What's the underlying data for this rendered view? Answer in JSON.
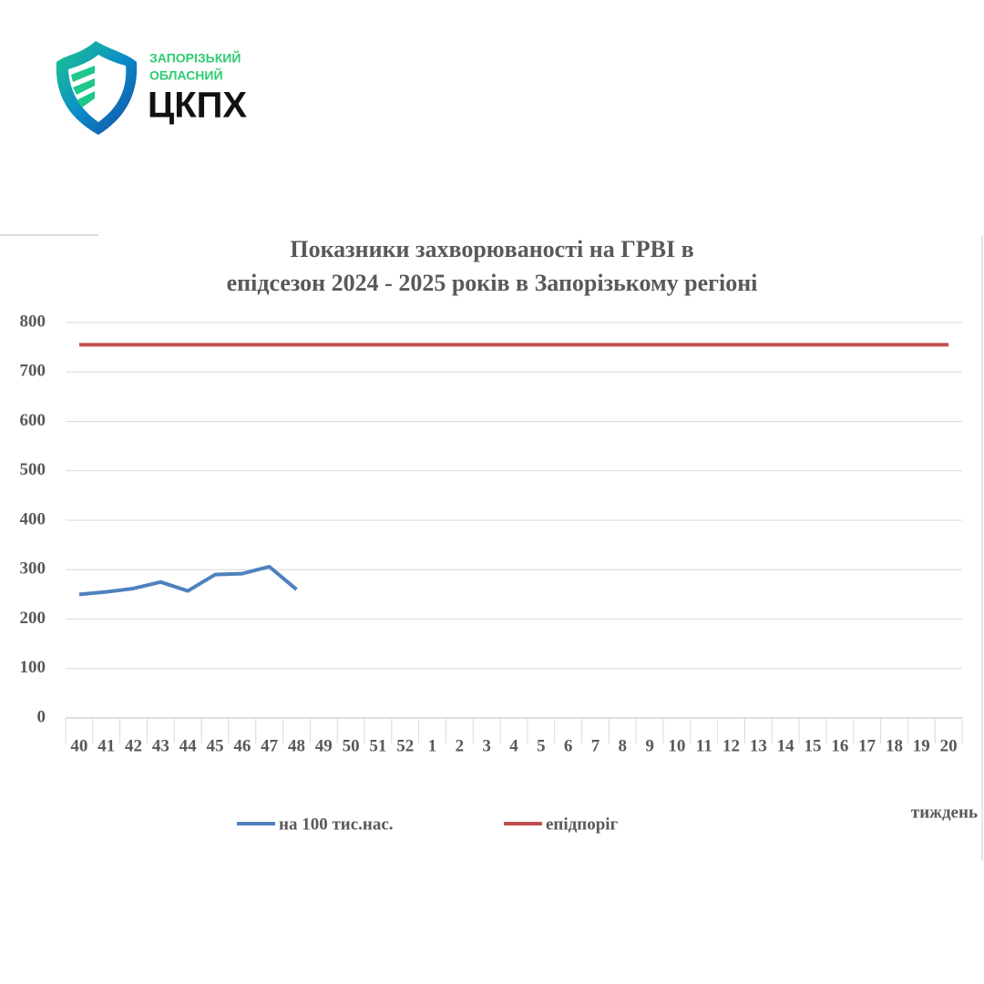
{
  "logo": {
    "line1": "ЗАПОРІЗЬКИЙ",
    "line2": "ОБЛАСНИЙ",
    "name": "ЦКПХ"
  },
  "chart_data": {
    "type": "line",
    "title": [
      "Показники захворюваності на ГРВІ в",
      "епідсезон 2024 - 2025 років в Запорізькому регіоні"
    ],
    "x_label": "тиждень",
    "categories": [
      "40",
      "41",
      "42",
      "43",
      "44",
      "45",
      "46",
      "47",
      "48",
      "49",
      "50",
      "51",
      "52",
      "1",
      "2",
      "3",
      "4",
      "5",
      "6",
      "7",
      "8",
      "9",
      "10",
      "11",
      "12",
      "13",
      "14",
      "15",
      "16",
      "17",
      "18",
      "19",
      "20"
    ],
    "series": [
      {
        "name": "на 100 тис.нас.",
        "color": "#4f81bd",
        "values": [
          250,
          255,
          262,
          275,
          257,
          290,
          292,
          306,
          260,
          null,
          null,
          null,
          null,
          null,
          null,
          null,
          null,
          null,
          null,
          null,
          null,
          null,
          null,
          null,
          null,
          null,
          null,
          null,
          null,
          null,
          null,
          null,
          null
        ]
      },
      {
        "name": "епідпоріг",
        "color": "#c0504d",
        "values": [
          755,
          755,
          755,
          755,
          755,
          755,
          755,
          755,
          755,
          755,
          755,
          755,
          755,
          755,
          755,
          755,
          755,
          755,
          755,
          755,
          755,
          755,
          755,
          755,
          755,
          755,
          755,
          755,
          755,
          755,
          755,
          755,
          755
        ]
      }
    ],
    "ylim": [
      0,
      800
    ],
    "yticks": [
      0,
      100,
      200,
      300,
      400,
      500,
      600,
      700,
      800
    ],
    "grid": true,
    "legend": "bottom"
  }
}
